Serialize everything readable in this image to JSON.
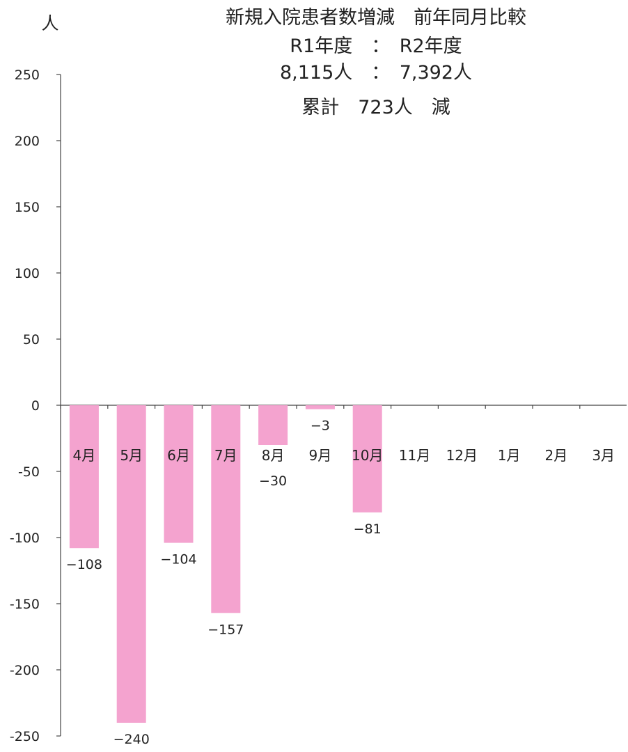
{
  "chart_data": {
    "type": "bar",
    "title_lines": [
      "新規入院患者数増減　前年同月比較",
      "R1年度　：　R2年度",
      "8,115人　：　7,392人",
      "累計　723人　減"
    ],
    "ylabel": "人",
    "xlabel": "",
    "ylim": [
      -250,
      250
    ],
    "yticks": [
      250,
      200,
      150,
      100,
      50,
      0,
      -50,
      -100,
      -150,
      -200,
      -250
    ],
    "categories": [
      "4月",
      "5月",
      "6月",
      "7月",
      "8月",
      "9月",
      "10月",
      "11月",
      "12月",
      "1月",
      "2月",
      "3月"
    ],
    "values": [
      -108,
      -240,
      -104,
      -157,
      -30,
      -3,
      -81,
      null,
      null,
      null,
      null,
      null
    ],
    "data_labels": [
      "−108",
      "−240",
      "−104",
      "−157",
      "−30",
      "−3",
      "−81",
      "",
      "",
      "",
      "",
      ""
    ],
    "bar_color": "#f4a3cf",
    "grid": false,
    "legend": "none"
  }
}
